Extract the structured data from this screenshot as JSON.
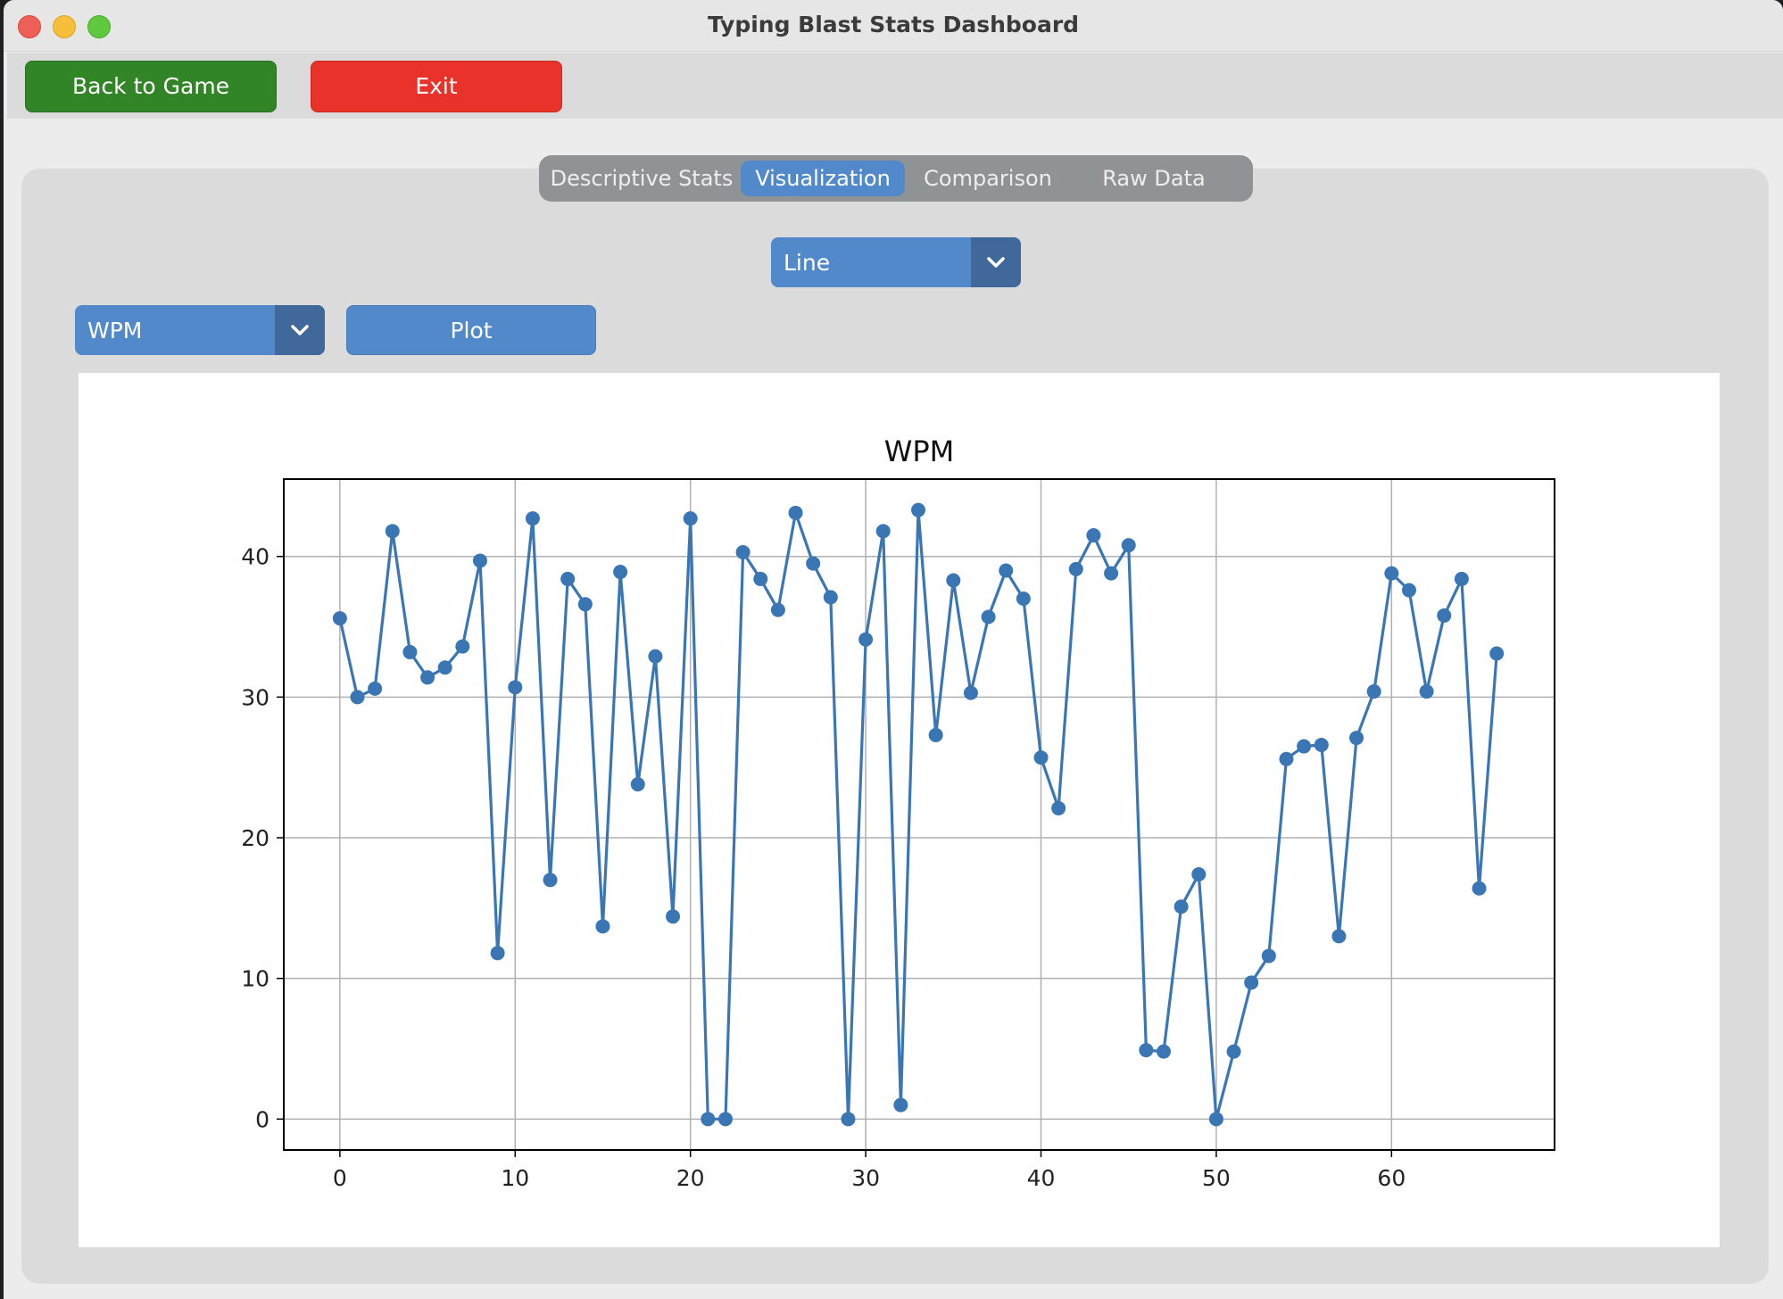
{
  "window": {
    "title": "Typing Blast Stats Dashboard"
  },
  "toolbar": {
    "back_label": "Back to Game",
    "exit_label": "Exit"
  },
  "tabs": [
    {
      "label": "Descriptive Stats",
      "active": false
    },
    {
      "label": "Visualization",
      "active": true
    },
    {
      "label": "Comparison",
      "active": false
    },
    {
      "label": "Raw Data",
      "active": false
    }
  ],
  "controls": {
    "chart_type_selected": "Line",
    "metric_selected": "WPM",
    "plot_label": "Plot"
  },
  "colors": {
    "accent": "#5189ca",
    "back_button": "#328526",
    "exit_button": "#e9322a",
    "series": "#3a75b4"
  },
  "chart_data": {
    "type": "line",
    "title": "WPM",
    "xlabel": "",
    "ylabel": "",
    "xlim": [
      -3.2,
      69.3
    ],
    "ylim": [
      -2.2,
      45.5
    ],
    "xticks": [
      0,
      10,
      20,
      30,
      40,
      50,
      60
    ],
    "yticks": [
      0,
      10,
      20,
      30,
      40
    ],
    "grid": true,
    "markers": true,
    "series": [
      {
        "x": [
          0,
          1,
          2,
          3,
          4,
          5,
          6,
          7,
          8,
          9,
          10,
          11,
          12,
          13,
          14,
          15,
          16,
          17,
          18,
          19,
          20,
          21,
          22,
          23,
          24,
          25,
          26,
          27,
          28,
          29,
          30,
          31,
          32,
          33,
          34,
          35,
          36,
          37,
          38,
          39,
          40,
          41,
          42,
          43,
          44,
          45,
          46,
          47,
          48,
          49,
          50,
          51,
          52,
          53,
          54,
          55,
          56,
          57,
          58,
          59,
          60,
          61,
          62,
          63,
          64,
          65,
          66
        ],
        "values": [
          35.6,
          30.0,
          30.6,
          41.8,
          33.2,
          31.4,
          32.1,
          33.6,
          39.7,
          11.8,
          30.7,
          42.7,
          17.0,
          38.4,
          36.6,
          13.7,
          38.9,
          23.8,
          32.9,
          14.4,
          42.7,
          0.0,
          0.0,
          40.3,
          38.4,
          36.2,
          43.1,
          39.5,
          37.1,
          0.0,
          34.1,
          41.8,
          1.0,
          43.3,
          27.3,
          38.3,
          30.3,
          35.7,
          39.0,
          37.0,
          25.7,
          22.1,
          39.1,
          41.5,
          38.8,
          40.8,
          4.9,
          4.8,
          15.1,
          17.4,
          0.0,
          4.8,
          9.7,
          11.6,
          25.6,
          26.5,
          26.6,
          13.0,
          27.1,
          30.4,
          38.8,
          37.6,
          30.4,
          35.8,
          38.4,
          16.4,
          33.1
        ]
      }
    ]
  }
}
